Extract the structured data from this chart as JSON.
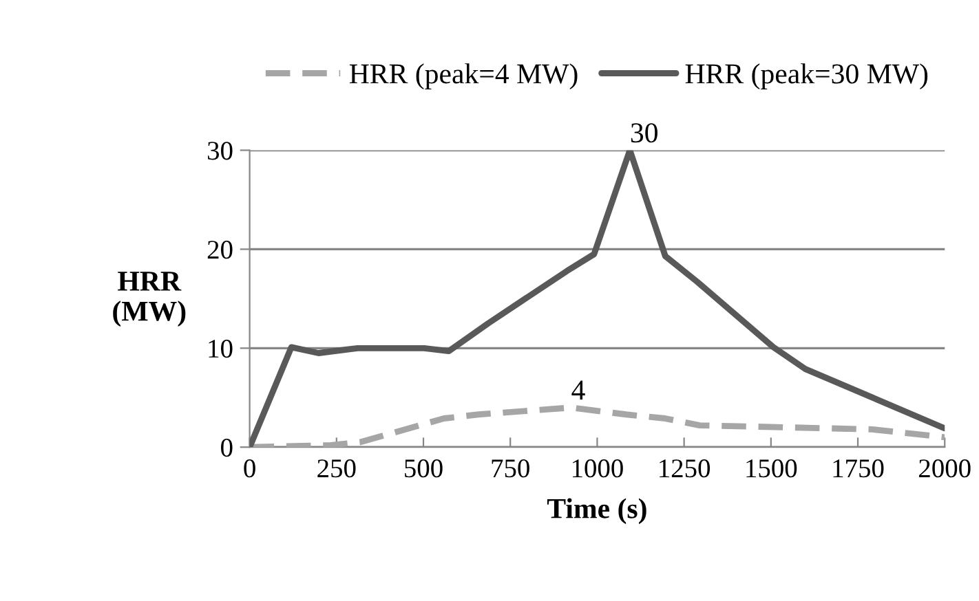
{
  "chart_data": {
    "type": "line",
    "xlabel": "Time (s)",
    "ylabel": "HRR\n(MW)",
    "xlim": [
      0,
      2000
    ],
    "xticks": [
      0,
      250,
      500,
      750,
      1000,
      1250,
      1500,
      1750,
      2000
    ],
    "ylim": [
      0,
      30
    ],
    "yticks": [
      0,
      10,
      20,
      30
    ],
    "grid": "y",
    "legend": "top",
    "marker": "none",
    "series": [
      {
        "name": "HRR (peak=4 MW)",
        "color": "#a6a6a6",
        "line_style": "dashed",
        "x": [
          0,
          234,
          318,
          559,
          658,
          925,
          1083,
          1196,
          1295,
          1791,
          2000
        ],
        "values": [
          0,
          0.2,
          0.5,
          2.9,
          3.3,
          4,
          3.3,
          2.9,
          2.2,
          1.8,
          1.0
        ],
        "value_labels": [
          null,
          null,
          null,
          null,
          null,
          "4",
          null,
          null,
          null,
          null,
          null
        ]
      },
      {
        "name": "HRR (peak=30 MW)",
        "color": "#595959",
        "line_style": "solid",
        "x": [
          0,
          120,
          198,
          311,
          502,
          573,
          686,
          913,
          991,
          1094,
          1196,
          1288,
          1507,
          1599,
          2000
        ],
        "values": [
          0,
          10.1,
          9.5,
          10,
          10,
          9.7,
          12.5,
          17.8,
          19.5,
          30,
          19.3,
          16.7,
          10.1,
          7.9,
          1.9
        ],
        "value_labels": [
          null,
          null,
          null,
          null,
          null,
          null,
          null,
          null,
          null,
          "30",
          null,
          null,
          null,
          null,
          null
        ]
      }
    ]
  }
}
